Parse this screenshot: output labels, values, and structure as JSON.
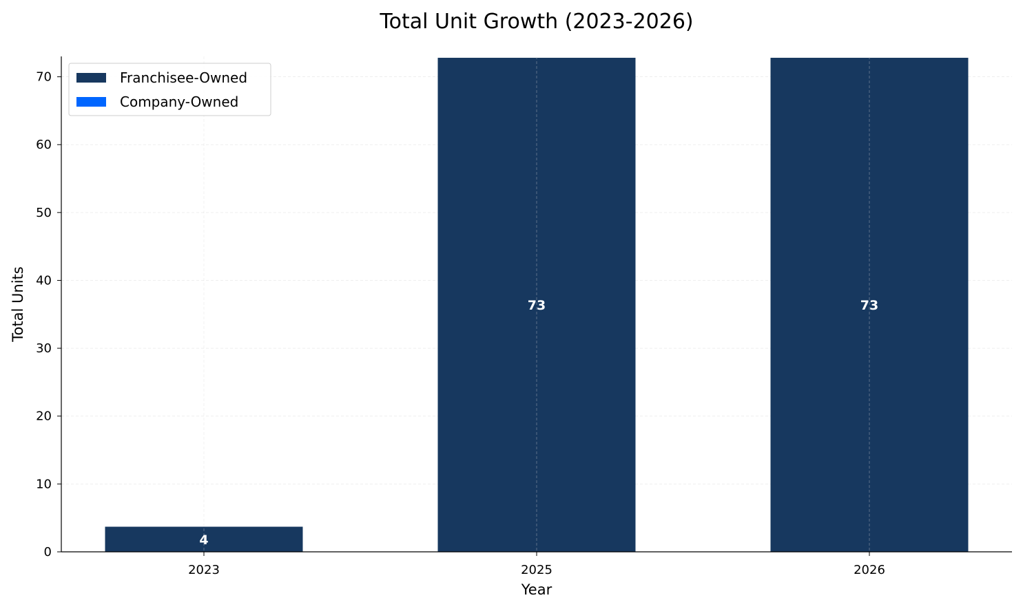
{
  "chart_data": {
    "type": "bar",
    "stacked": true,
    "title": "Total Unit Growth (2023-2026)",
    "xlabel": "Year",
    "ylabel": "Total Units",
    "categories": [
      "2023",
      "2025",
      "2026"
    ],
    "series": [
      {
        "name": "Franchisee-Owned",
        "color": "#17385f",
        "values": [
          3.7,
          72.8,
          72.8
        ]
      },
      {
        "name": "Company-Owned",
        "color": "#0066ff",
        "values": [
          0,
          0,
          0
        ]
      }
    ],
    "data_labels": [
      "4",
      "73",
      "73"
    ],
    "ylim": [
      0,
      73
    ],
    "yticks": [
      0,
      10,
      20,
      30,
      40,
      50,
      60,
      70
    ],
    "grid": true,
    "legend_position": "top-left"
  }
}
